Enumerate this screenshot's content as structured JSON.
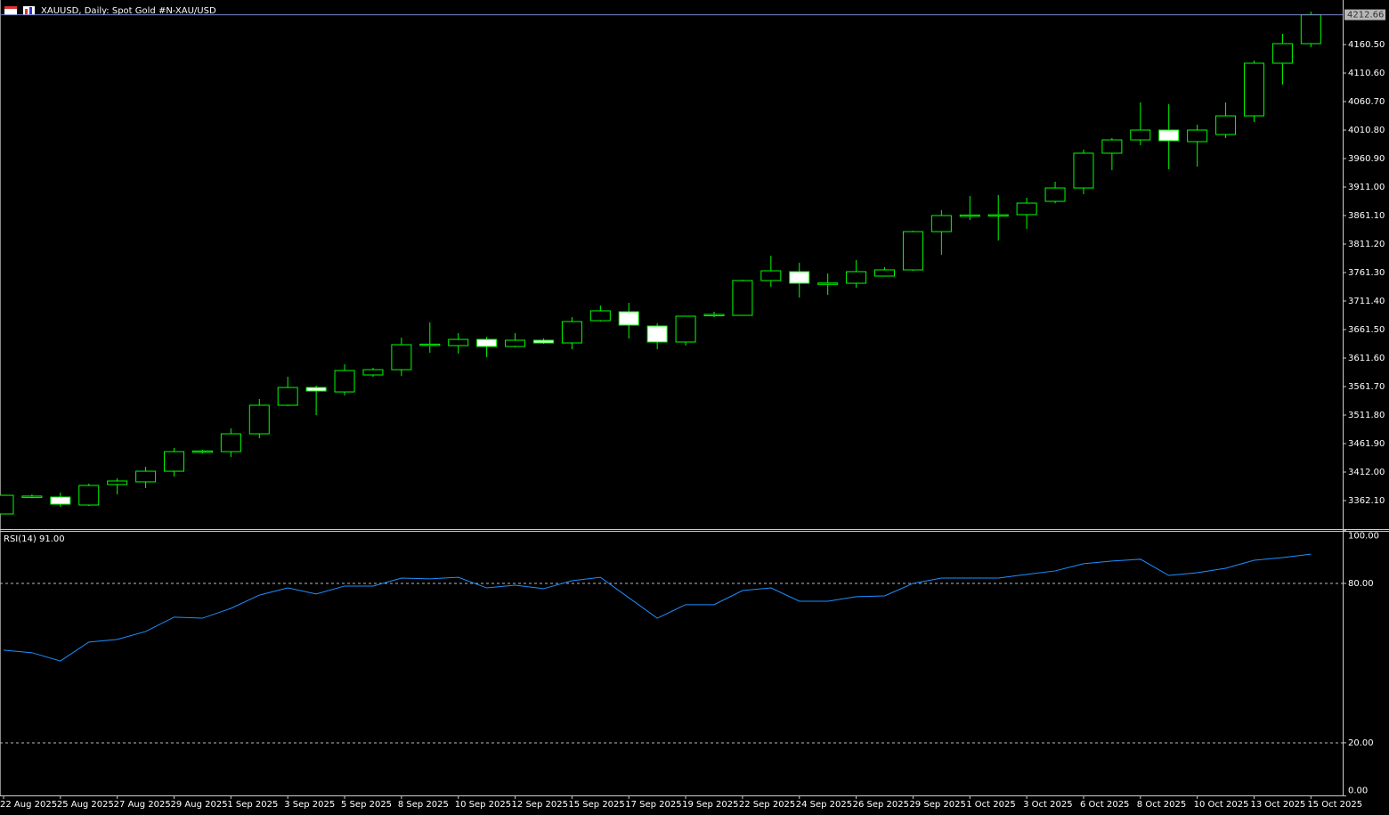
{
  "chart_data": [
    {
      "type": "candlestick",
      "title": "XAUUSD, Daily:  Spot Gold #N-XAU/USD",
      "categories": [
        "22 Aug 2025",
        null,
        "25 Aug 2025",
        null,
        "27 Aug 2025",
        null,
        "29 Aug 2025",
        null,
        "1 Sep 2025",
        null,
        "3 Sep 2025",
        null,
        "5 Sep 2025",
        null,
        "8 Sep 2025",
        null,
        "10 Sep 2025",
        null,
        "12 Sep 2025",
        null,
        "15 Sep 2025",
        null,
        "17 Sep 2025",
        null,
        "19 Sep 2025",
        null,
        "22 Sep 2025",
        null,
        "24 Sep 2025",
        null,
        "26 Sep 2025",
        null,
        "29 Sep 2025",
        null,
        "1 Oct 2025",
        null,
        "3 Oct 2025",
        null,
        "6 Oct 2025",
        null,
        "8 Oct 2025",
        null,
        "10 Oct 2025",
        null,
        "13 Oct 2025",
        null,
        "15 Oct 2025"
      ],
      "open": [
        3338.7,
        3368,
        3368.3,
        3354.3,
        3390.2,
        3394.9,
        3413.5,
        3447,
        3447.8,
        3479.0,
        3529.0,
        3560.1,
        3552.3,
        3582.0,
        3591.3,
        3634,
        3633.4,
        3644.3,
        3631.9,
        3642.8,
        3638.1,
        3677.1,
        3692.7,
        3667.7,
        3639.7,
        3686,
        3686.4,
        3747.3,
        3762.9,
        3741,
        3742.6,
        3755.1,
        3766.0,
        3833.0,
        3861,
        3861.5,
        3862.7,
        3886.0,
        3909.4,
        3970.3,
        3993.6,
        4010.8,
        3990.5,
        4003.0,
        4035.7,
        4127.8,
        4162.1
      ],
      "high": [
        3372,
        3373,
        3376.1,
        3391.7,
        3401.1,
        3421.4,
        3454.1,
        3451,
        3488.4,
        3539.9,
        3578.9,
        3563.3,
        3600.7,
        3594.4,
        3647.5,
        3674.0,
        3655.3,
        3649.0,
        3655.3,
        3645.9,
        3683.3,
        3703.6,
        3708.3,
        3672.4,
        3685.5,
        3692.7,
        3748.8,
        3790.9,
        3778.4,
        3759.7,
        3783.1,
        3770.7,
        3834.6,
        3870.5,
        3895.4,
        3897.0,
        3892.3,
        3920.4,
        3976.5,
        3996.8,
        4059.1,
        4056.0,
        4020.2,
        4059.1,
        4132.4,
        4179.2,
        4218.2
      ],
      "low": [
        3338,
        3366,
        3351.2,
        3352.7,
        3373.0,
        3383.9,
        3404.2,
        3444.7,
        3438.5,
        3471.2,
        3527.4,
        3511.8,
        3546.1,
        3578.9,
        3580.4,
        3620.9,
        3619.4,
        3613.2,
        3630.3,
        3636.5,
        3627.2,
        3675.5,
        3645.9,
        3627.2,
        3633.4,
        3683.3,
        3686,
        3736.4,
        3717.6,
        3722.3,
        3734.8,
        3754.8,
        3764.4,
        3792.5,
        3853.3,
        3817.4,
        3837.7,
        3882.5,
        3898.5,
        3940.6,
        3984.3,
        3942.2,
        3946.9,
        3996.8,
        4024.8,
        4090.3,
        4155.8
      ],
      "close": [
        3371.4,
        3370,
        3355.8,
        3388.6,
        3396.4,
        3413.5,
        3447.8,
        3449,
        3479.0,
        3529.0,
        3560.1,
        3553.9,
        3589.8,
        3591.3,
        3635.0,
        3636,
        3644.3,
        3631.9,
        3642.8,
        3638.1,
        3675.5,
        3694.3,
        3669.3,
        3639.7,
        3684.9,
        3688,
        3747.3,
        3764.4,
        3742.6,
        3743,
        3762.9,
        3766.0,
        3833.0,
        3861.1,
        3862,
        3862.5,
        3882.9,
        3909.4,
        3970.3,
        3993.6,
        4010.8,
        3992.1,
        4010.8,
        4035.7,
        4127.8,
        4162.1,
        4212.66
      ],
      "color": "#00ff00",
      "up_color": "#000000",
      "down_color": "#ffffff",
      "ylim": [
        3312.2,
        4238.5
      ],
      "yticks": [
        {
          "value": 4160.5,
          "label": "4160.50"
        },
        {
          "value": 4110.6,
          "label": "4110.60"
        },
        {
          "value": 4060.7,
          "label": "4060.70"
        },
        {
          "value": 4010.8,
          "label": "4010.80"
        },
        {
          "value": 3960.9,
          "label": "3960.90"
        },
        {
          "value": 3911,
          "label": "3911.00"
        },
        {
          "value": 3861.1,
          "label": "3861.10"
        },
        {
          "value": 3811.2,
          "label": "3811.20"
        },
        {
          "value": 3761.3,
          "label": "3761.30"
        },
        {
          "value": 3711.4,
          "label": "3711.40"
        },
        {
          "value": 3661.5,
          "label": "3661.50"
        },
        {
          "value": 3611.6,
          "label": "3611.60"
        },
        {
          "value": 3561.7,
          "label": "3561.70"
        },
        {
          "value": 3511.8,
          "label": "3511.80"
        },
        {
          "value": 3461.9,
          "label": "3461.90"
        },
        {
          "value": 3412,
          "label": "3412.00"
        },
        {
          "value": 3362.1,
          "label": "3362.10"
        }
      ],
      "last_price": {
        "value": 4212.66,
        "label": "4212.66"
      }
    },
    {
      "type": "line",
      "title": "RSI(14) 91.00",
      "values": [
        54.9,
        53.9,
        50.8,
        57.9,
        58.9,
        61.9,
        67.3,
        66.9,
        70.6,
        75.6,
        78.3,
        76.0,
        79.0,
        79.0,
        82.0,
        81.7,
        82.3,
        78.3,
        79.3,
        78.0,
        81.0,
        82.3,
        74.6,
        66.9,
        72.0,
        72.0,
        77.3,
        78.3,
        73.3,
        73.3,
        75.0,
        75.3,
        80.0,
        82.0,
        82.0,
        82.0,
        83.4,
        84.7,
        87.4,
        88.4,
        89.1,
        83.0,
        84.0,
        85.7,
        88.7,
        89.7,
        91.0
      ],
      "color": "#1e90ff",
      "ylim": [
        0,
        100
      ],
      "yticks": [
        {
          "value": 100,
          "label": "100.00"
        },
        {
          "value": 80,
          "label": "80.00"
        },
        {
          "value": 20,
          "label": "20.00"
        },
        {
          "value": 0,
          "label": "0.00"
        }
      ],
      "level_style": "dashed"
    }
  ]
}
